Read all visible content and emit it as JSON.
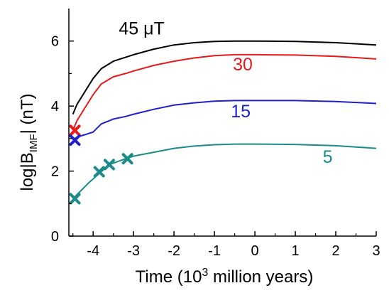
{
  "chart_data": {
    "type": "line",
    "xlabel_main": "Time (10",
    "xlabel_sup": "3",
    "xlabel_rest": " million years)",
    "ylabel_main": "log|B",
    "ylabel_sub": "IMF",
    "ylabel_rest": "| (nT)",
    "xlim": [
      -4.6,
      3.0
    ],
    "ylim": [
      0,
      7.0
    ],
    "xticks": [
      -4,
      -3,
      -2,
      -1,
      0,
      1,
      2,
      3
    ],
    "xtick_labels": [
      "-4",
      "-3",
      "-2",
      "-1",
      "0",
      "1",
      "2",
      "3"
    ],
    "yticks": [
      0,
      2,
      4,
      6
    ],
    "ytick_labels": [
      "0",
      "2",
      "4",
      "6"
    ],
    "grid": false,
    "series": [
      {
        "name": "45 μT",
        "color": "#000000",
        "x": [
          -4.5,
          -4.4,
          -4.2,
          -4.0,
          -3.8,
          -3.5,
          -3.2,
          -3.0,
          -2.5,
          -2.0,
          -1.5,
          -1.0,
          -0.5,
          0.0,
          1.0,
          2.0,
          3.0
        ],
        "y": [
          3.75,
          4.05,
          4.45,
          4.85,
          5.15,
          5.38,
          5.5,
          5.58,
          5.75,
          5.88,
          5.95,
          5.99,
          6.0,
          6.0,
          5.99,
          5.95,
          5.88
        ]
      },
      {
        "name": "30",
        "color": "#e41a1c",
        "x": [
          -4.5,
          -4.4,
          -4.2,
          -4.0,
          -3.8,
          -3.5,
          -3.2,
          -3.0,
          -2.5,
          -2.0,
          -1.5,
          -1.0,
          -0.5,
          0.0,
          1.0,
          2.0,
          3.0
        ],
        "y": [
          3.25,
          3.55,
          3.95,
          4.35,
          4.68,
          4.9,
          5.0,
          5.08,
          5.25,
          5.38,
          5.48,
          5.55,
          5.58,
          5.58,
          5.57,
          5.53,
          5.45
        ]
      },
      {
        "name": "15",
        "color": "#1f1fcc",
        "x": [
          -4.5,
          -4.4,
          -4.2,
          -4.0,
          -3.8,
          -3.5,
          -3.2,
          -3.0,
          -2.5,
          -2.0,
          -1.5,
          -1.0,
          -0.5,
          0.0,
          1.0,
          2.0,
          3.0
        ],
        "y": [
          2.95,
          3.05,
          3.12,
          3.2,
          3.45,
          3.6,
          3.68,
          3.75,
          3.9,
          4.03,
          4.1,
          4.15,
          4.17,
          4.17,
          4.17,
          4.14,
          4.08
        ]
      },
      {
        "name": "5",
        "color": "#1a8a8a",
        "x": [
          -4.5,
          -4.3,
          -4.1,
          -3.8,
          -3.6,
          -3.2,
          -3.0,
          -2.5,
          -2.0,
          -1.5,
          -1.0,
          -0.5,
          0.0,
          1.0,
          2.0,
          3.0
        ],
        "y": [
          1.15,
          1.4,
          1.65,
          1.98,
          2.2,
          2.38,
          2.46,
          2.58,
          2.7,
          2.77,
          2.81,
          2.83,
          2.83,
          2.82,
          2.78,
          2.7
        ]
      }
    ],
    "markers": [
      {
        "series": "30",
        "color": "#e41a1c",
        "x": -4.45,
        "y": 3.25
      },
      {
        "series": "15",
        "color": "#1f1fcc",
        "x": -4.45,
        "y": 2.95
      },
      {
        "series": "5",
        "color": "#1a8a8a",
        "x": -4.45,
        "y": 1.15
      },
      {
        "series": "5",
        "color": "#1a8a8a",
        "x": -3.85,
        "y": 1.98
      },
      {
        "series": "5",
        "color": "#1a8a8a",
        "x": -3.6,
        "y": 2.2
      },
      {
        "series": "5",
        "color": "#1a8a8a",
        "x": -3.15,
        "y": 2.38
      }
    ],
    "labels": [
      {
        "text": "45 μT",
        "color": "#000000",
        "x": -2.8,
        "y": 6.2
      },
      {
        "text": "30",
        "color": "#e41a1c",
        "x": -0.3,
        "y": 5.1
      },
      {
        "text": "15",
        "color": "#1f1fcc",
        "x": -0.35,
        "y": 3.65
      },
      {
        "text": "5",
        "color": "#1a8a8a",
        "x": 1.8,
        "y": 2.25
      }
    ]
  }
}
